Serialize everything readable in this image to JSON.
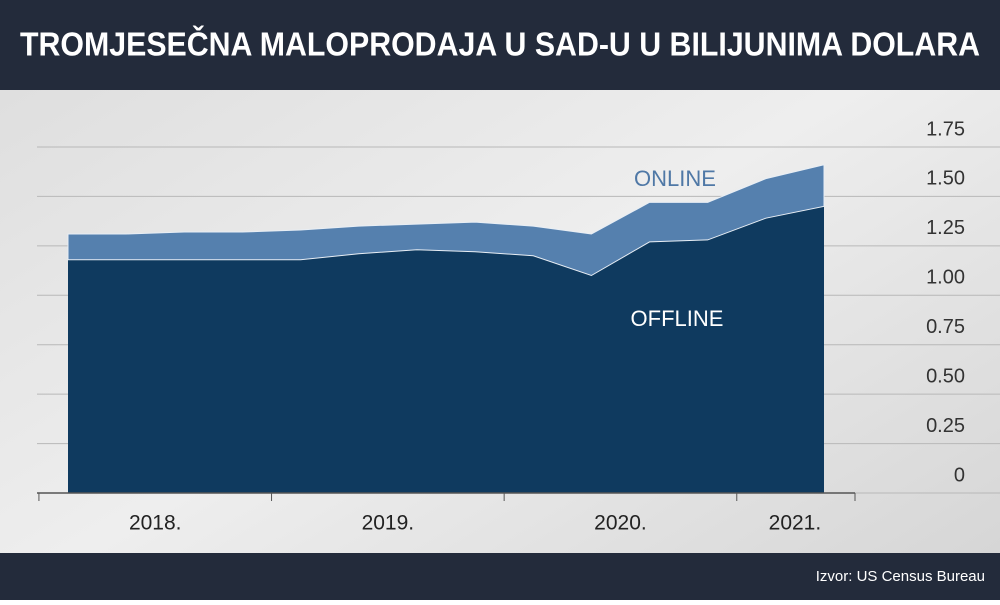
{
  "chart_data": {
    "type": "stacked_area",
    "title": "TROMJESEČNA MALOPRODAJA U SAD-U U BILIJUNIMA DOLARA",
    "source": "Izvor: US Census Bureau",
    "categories": [
      "2018.",
      null,
      null,
      null,
      "2019.",
      null,
      null,
      null,
      "2020.",
      null,
      null,
      null,
      "2021.",
      null
    ],
    "series": [
      {
        "name": "OFFLINE",
        "color": "#0f3a5f",
        "values": [
          1.18,
          1.18,
          1.18,
          1.18,
          1.18,
          1.21,
          1.23,
          1.22,
          1.2,
          1.1,
          1.27,
          1.28,
          1.39,
          1.45
        ]
      },
      {
        "name": "ONLINE",
        "color": "#5580ae",
        "values": [
          0.13,
          0.13,
          0.14,
          0.14,
          0.15,
          0.14,
          0.13,
          0.15,
          0.15,
          0.21,
          0.2,
          0.19,
          0.2,
          0.21
        ]
      }
    ],
    "ylim": [
      0,
      1.75
    ],
    "yticks": [
      0,
      0.25,
      {
        "value": 0.5,
        "label": "0.50"
      },
      0.75,
      {
        "value": 1,
        "label": "1.00"
      },
      1.25,
      {
        "value": 1.5,
        "label": "1.50"
      },
      1.75
    ],
    "grid": true
  }
}
